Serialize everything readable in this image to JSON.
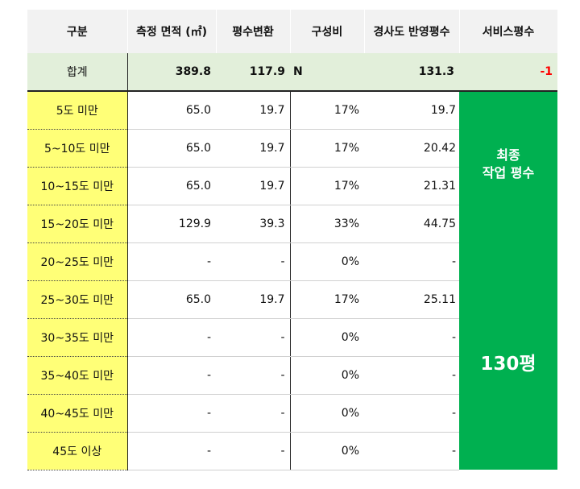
{
  "headers": [
    "구분",
    "측정 면적 (㎡)",
    "평수변환",
    "구성비",
    "경사도 반영평수",
    "서비스평수"
  ],
  "total": {
    "label": "합계",
    "area": "389.8",
    "pyeong": "117.9",
    "ratio": "N",
    "slope_pyeong": "131.3",
    "service": "-1"
  },
  "rows": [
    {
      "label": "5도 미만",
      "area": "65.0",
      "pyeong": "19.7",
      "ratio": "17%",
      "slope_pyeong": "19.7"
    },
    {
      "label": "5~10도 미만",
      "area": "65.0",
      "pyeong": "19.7",
      "ratio": "17%",
      "slope_pyeong": "20.42"
    },
    {
      "label": "10~15도 미만",
      "area": "65.0",
      "pyeong": "19.7",
      "ratio": "17%",
      "slope_pyeong": "21.31"
    },
    {
      "label": "15~20도 미만",
      "area": "129.9",
      "pyeong": "39.3",
      "ratio": "33%",
      "slope_pyeong": "44.75"
    },
    {
      "label": "20~25도 미만",
      "area": "-",
      "pyeong": "-",
      "ratio": "0%",
      "slope_pyeong": "-"
    },
    {
      "label": "25~30도 미만",
      "area": "65.0",
      "pyeong": "19.7",
      "ratio": "17%",
      "slope_pyeong": "25.11"
    },
    {
      "label": "30~35도 미만",
      "area": "-",
      "pyeong": "-",
      "ratio": "0%",
      "slope_pyeong": "-"
    },
    {
      "label": "35~40도 미만",
      "area": "-",
      "pyeong": "-",
      "ratio": "0%",
      "slope_pyeong": "-"
    },
    {
      "label": "40~45도 미만",
      "area": "-",
      "pyeong": "-",
      "ratio": "0%",
      "slope_pyeong": "-"
    },
    {
      "label": "45도 이상",
      "area": "-",
      "pyeong": "-",
      "ratio": "0%",
      "slope_pyeong": "-"
    }
  ],
  "final_box": {
    "line1": "최종",
    "line2": "작업 평수",
    "value": "130평"
  },
  "colors": {
    "header_bg": "#f2f2f2",
    "total_bg": "#e2efda",
    "label_bg": "#ffff77",
    "final_bg": "#00b050",
    "negative": "#ff0000"
  }
}
